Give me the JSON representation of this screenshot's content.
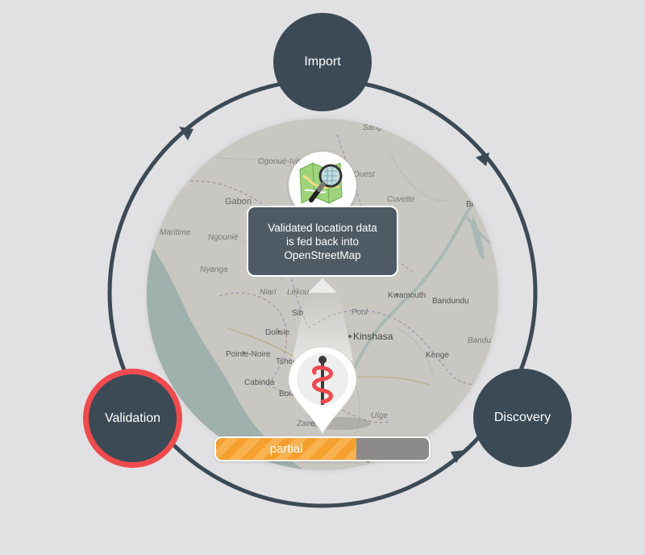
{
  "cycle": {
    "nodes": {
      "import": {
        "label": "Import"
      },
      "discovery": {
        "label": "Discovery"
      },
      "validation": {
        "label": "Validation",
        "active": true
      }
    },
    "ring_color": "#3b4a55",
    "active_color": "#ef4b4f"
  },
  "map": {
    "places": {
      "sangha": "Sang",
      "ogooue_ivindo": "Ogooué-Ivin",
      "ouest": "Ouest",
      "cuvette": "Cuvette",
      "gabon": "Gabon",
      "maritime": "Maritime",
      "ngounie": "Ngounié",
      "nyanga": "Nyanga",
      "niari": "Niari",
      "lekoumou": "Lékou",
      "sibiti": "Sib",
      "pool": "Pool",
      "kwamouth": "Kwamouth",
      "bandundu_town": "Bandundu",
      "bandundu": "Bandu",
      "bikoro": "Bi",
      "dolisie": "Dolisie",
      "kinshasa": "Kinshasa",
      "pointe_noire": "Pointe-Noire",
      "tshela": "Tshela",
      "kenge": "Kenge",
      "cabinda": "Cabinda",
      "boma": "Bon",
      "zaire": "Zaire",
      "uige": "Uíge",
      "uige_town": "Uige"
    }
  },
  "callout": {
    "lines": [
      "Validated location data",
      "is fed back into",
      "OpenStreetMap"
    ]
  },
  "icons": {
    "map_icon": "openstreetmap-magnifier-icon",
    "pin_icon": "medical-caduceus-pin-icon"
  },
  "progress": {
    "label": "partial",
    "fraction": 0.66,
    "fill_color": "#f5a02e"
  }
}
